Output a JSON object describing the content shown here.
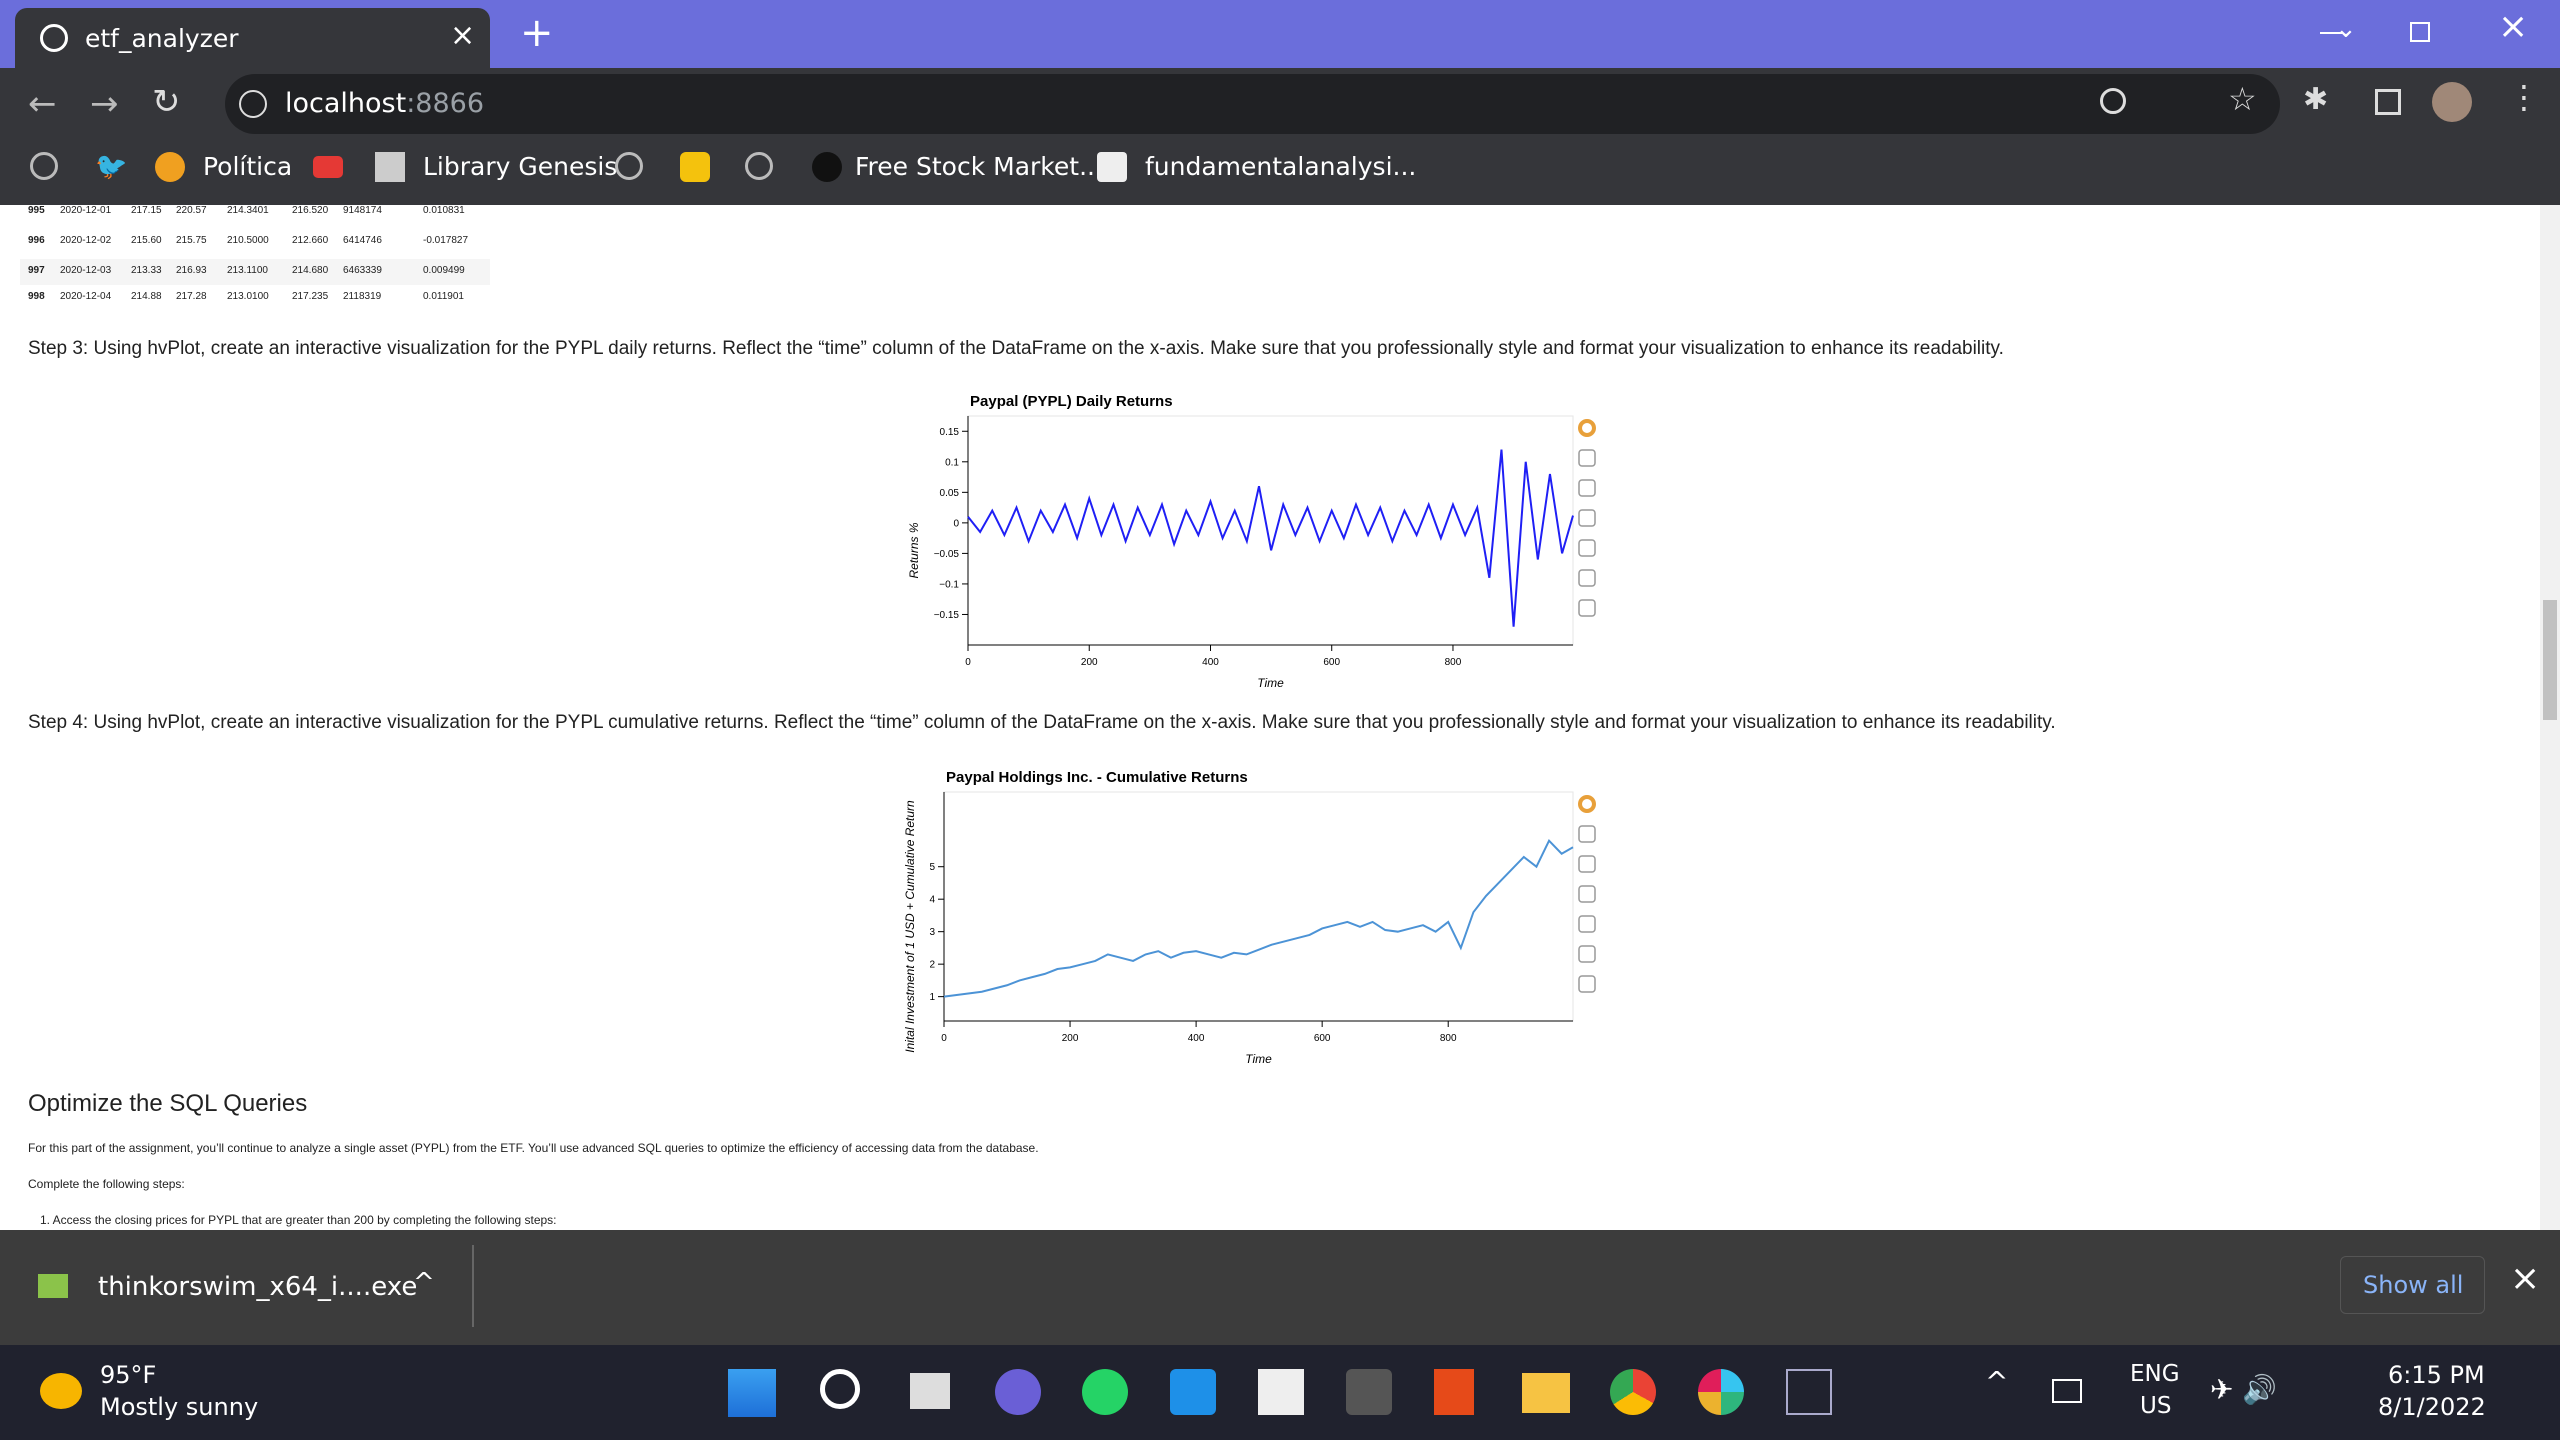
{
  "browser": {
    "tab_title": "etf_analyzer",
    "url_host": "localhost",
    "url_port": ":8866",
    "bookmarks": [
      "Política",
      "Library Genesis",
      "Free Stock Market...",
      "fundamentalanalysi..."
    ]
  },
  "notebook": {
    "table_rows": [
      [
        "995",
        "2020-12-01",
        "217.15",
        "220.57",
        "214.3401",
        "216.520",
        "9148174",
        "0.010831"
      ],
      [
        "996",
        "2020-12-02",
        "215.60",
        "215.75",
        "210.5000",
        "212.660",
        "6414746",
        "-0.017827"
      ],
      [
        "997",
        "2020-12-03",
        "213.33",
        "216.93",
        "213.1100",
        "214.680",
        "6463339",
        "0.009499"
      ],
      [
        "998",
        "2020-12-04",
        "214.88",
        "217.28",
        "213.0100",
        "217.235",
        "2118319",
        "0.011901"
      ]
    ],
    "step3": "Step 3: Using hvPlot, create an interactive visualization for the PYPL daily returns. Reflect the “time” column of the DataFrame on the x-axis. Make sure that you professionally style and format your visualization to enhance its readability.",
    "step4": "Step 4: Using hvPlot, create an interactive visualization for the PYPL cumulative returns. Reflect the “time” column of the DataFrame on the x-axis. Make sure that you professionally style and format your visualization to enhance its readability.",
    "charts": [
      {
        "type": "line",
        "title": "Paypal (PYPL) Daily Returns",
        "x_label": "Time",
        "y_label": "Returns %",
        "color": "#1f1ff5",
        "x": [
          0,
          20,
          40,
          60,
          80,
          100,
          120,
          140,
          160,
          180,
          200,
          220,
          240,
          260,
          280,
          300,
          320,
          340,
          360,
          380,
          400,
          420,
          440,
          460,
          480,
          500,
          520,
          540,
          560,
          580,
          600,
          620,
          640,
          660,
          680,
          700,
          720,
          740,
          760,
          780,
          800,
          820,
          840,
          860,
          880,
          900,
          920,
          940,
          960,
          980,
          998
        ],
        "values": [
          0.01,
          -0.015,
          0.02,
          -0.02,
          0.025,
          -0.03,
          0.02,
          -0.015,
          0.03,
          -0.025,
          0.04,
          -0.02,
          0.03,
          -0.03,
          0.025,
          -0.02,
          0.03,
          -0.035,
          0.02,
          -0.02,
          0.035,
          -0.025,
          0.02,
          -0.03,
          0.06,
          -0.045,
          0.03,
          -0.02,
          0.025,
          -0.03,
          0.02,
          -0.025,
          0.03,
          -0.02,
          0.025,
          -0.03,
          0.02,
          -0.02,
          0.03,
          -0.025,
          0.03,
          -0.02,
          0.025,
          -0.09,
          0.12,
          -0.17,
          0.1,
          -0.06,
          0.08,
          -0.05,
          0.012
        ],
        "xlim": [
          0,
          998
        ],
        "ylim": [
          -0.2,
          0.175
        ],
        "xticks": [
          0,
          200,
          400,
          600,
          800
        ],
        "yticks": [
          0.15,
          0.1,
          0.05,
          0,
          {
            "value": -0.05,
            "label": "−0.05"
          },
          {
            "value": -0.1,
            "label": "−0.1"
          },
          {
            "value": -0.15,
            "label": "−0.15"
          }
        ]
      },
      {
        "type": "line",
        "title": "Paypal Holdings Inc. - Cumulative Returns",
        "x_label": "Time",
        "y_label": "Inital Investment of 1 USD + Cumulative Return",
        "color": "#4c93d6",
        "x": [
          0,
          20,
          40,
          60,
          80,
          100,
          120,
          140,
          160,
          180,
          200,
          220,
          240,
          260,
          280,
          300,
          320,
          340,
          360,
          380,
          400,
          420,
          440,
          460,
          480,
          500,
          520,
          540,
          560,
          580,
          600,
          620,
          640,
          660,
          680,
          700,
          720,
          740,
          760,
          780,
          800,
          820,
          840,
          860,
          880,
          900,
          920,
          940,
          960,
          980,
          998
        ],
        "values": [
          1.0,
          1.05,
          1.1,
          1.15,
          1.25,
          1.35,
          1.5,
          1.6,
          1.7,
          1.85,
          1.9,
          2.0,
          2.1,
          2.3,
          2.2,
          2.1,
          2.3,
          2.4,
          2.2,
          2.35,
          2.4,
          2.3,
          2.2,
          2.35,
          2.3,
          2.45,
          2.6,
          2.7,
          2.8,
          2.9,
          3.1,
          3.2,
          3.3,
          3.15,
          3.3,
          3.05,
          3.0,
          3.1,
          3.2,
          3.0,
          3.3,
          2.5,
          3.6,
          4.1,
          4.5,
          4.9,
          5.3,
          5.0,
          5.8,
          5.4,
          5.6
        ],
        "xlim": [
          0,
          998
        ],
        "ylim": [
          0.25,
          7.3
        ],
        "xticks": [
          0,
          200,
          400,
          600,
          800
        ],
        "yticks": [
          1,
          2,
          3,
          4,
          5
        ]
      }
    ],
    "section_title": "Optimize the SQL Queries",
    "paragraph": "For this part of the assignment, you’ll continue to analyze a single asset (PYPL) from the ETF. You’ll use advanced SQL queries to optimize the efficiency of accessing data from the database.",
    "steps_intro": "Complete the following steps:",
    "list_item": "1. Access the closing prices for PYPL that are greater than 200 by completing the following steps:"
  },
  "downloads": {
    "file": "thinkorswim_x64_i....exe",
    "show_all": "Show all"
  },
  "taskbar": {
    "temperature": "95°F",
    "weather": "Mostly sunny",
    "lang": "ENG",
    "region": "US",
    "time": "6:15 PM",
    "date": "8/1/2022"
  }
}
